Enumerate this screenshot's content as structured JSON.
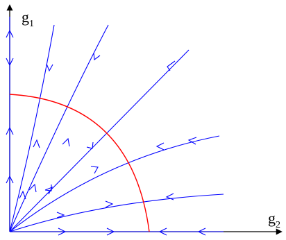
{
  "diagram": {
    "axes": {
      "vertical_label": "g",
      "vertical_subscript": "1",
      "horizontal_label": "g",
      "horizontal_subscript": "2"
    },
    "colors": {
      "axis": "#000000",
      "flow_lines": "#0000ff",
      "separatrix": "#ff0000"
    }
  }
}
